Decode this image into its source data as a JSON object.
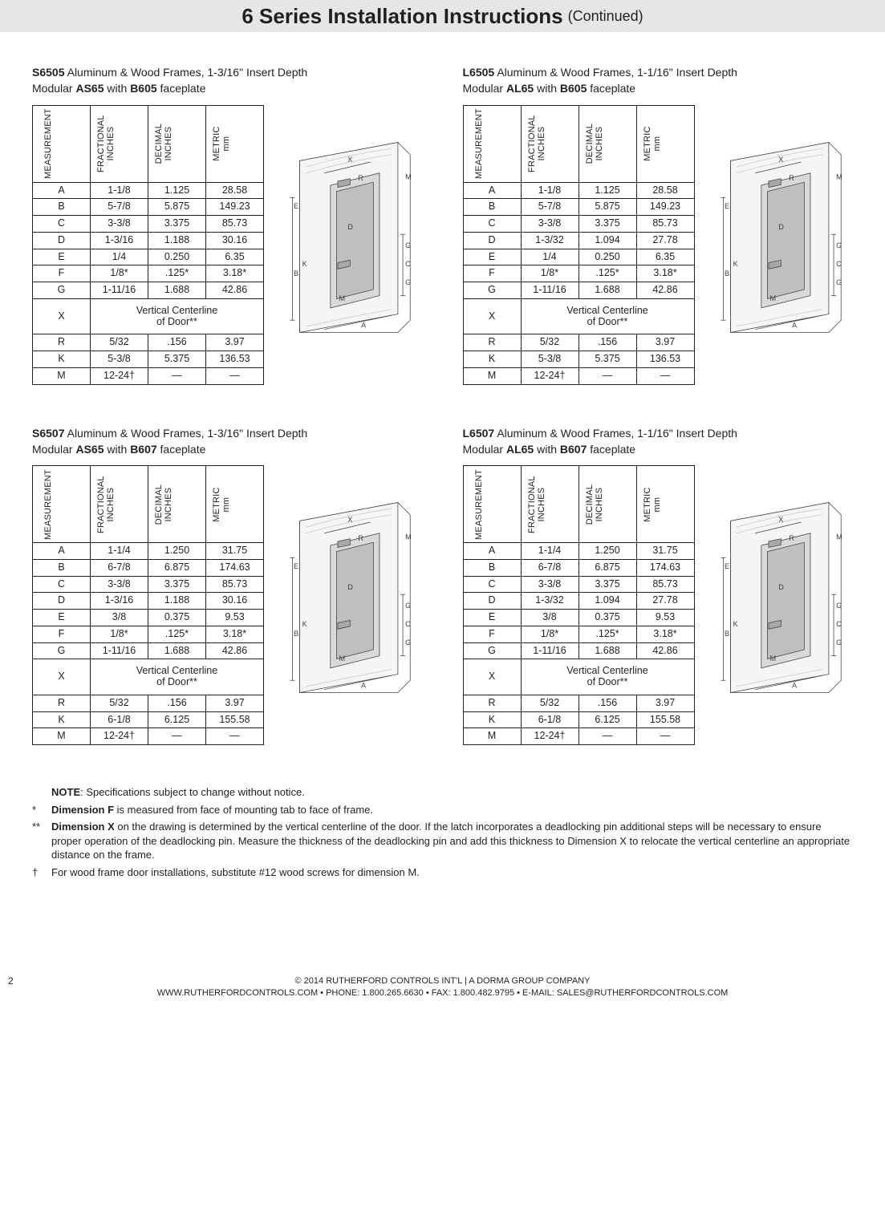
{
  "title": {
    "main": "6 Series Installation Instructions",
    "cont": "(Continued)"
  },
  "colors": {
    "ink": "#231f20",
    "bg": "#ffffff",
    "titlebar": "#e6e6e6",
    "diagram_fill": "#d9d9d9",
    "diagram_stroke": "#404040"
  },
  "col_headers": [
    "MEASUREMENT",
    "FRACTIONAL INCHES",
    "DECIMAL INCHES",
    "METRIC mm"
  ],
  "x_note": "Vertical Centerline of Door**",
  "sections": [
    {
      "model": "S6505",
      "frame": " Aluminum & Wood Frames, 1-3/16\" Insert Depth",
      "mod_pre": "Modular ",
      "mod_b1": "AS65",
      "mod_mid": " with ",
      "mod_b2": "B605",
      "mod_post": " faceplate",
      "rows": [
        {
          "l": "A",
          "f": "1-1/8",
          "d": "1.125",
          "m": "28.58"
        },
        {
          "l": "B",
          "f": "5-7/8",
          "d": "5.875",
          "m": "149.23"
        },
        {
          "l": "C",
          "f": "3-3/8",
          "d": "3.375",
          "m": "85.73"
        },
        {
          "l": "D",
          "f": "1-3/16",
          "d": "1.188",
          "m": "30.16"
        },
        {
          "l": "E",
          "f": "1/4",
          "d": "0.250",
          "m": "6.35"
        },
        {
          "l": "F",
          "f": "1/8*",
          "d": ".125*",
          "m": "3.18*"
        },
        {
          "l": "G",
          "f": "1-11/16",
          "d": "1.688",
          "m": "42.86"
        },
        {
          "l": "X",
          "x": true
        },
        {
          "l": "R",
          "f": "5/32",
          "d": ".156",
          "m": "3.97"
        },
        {
          "l": "K",
          "f": "5-3/8",
          "d": "5.375",
          "m": "136.53"
        },
        {
          "l": "M",
          "f": "12-24†",
          "d": "—",
          "m": "—"
        }
      ]
    },
    {
      "model": "L6505",
      "frame": " Aluminum & Wood Frames, 1-1/16\" Insert Depth",
      "mod_pre": "Modular ",
      "mod_b1": "AL65",
      "mod_mid": " with ",
      "mod_b2": "B605",
      "mod_post": " faceplate",
      "rows": [
        {
          "l": "A",
          "f": "1-1/8",
          "d": "1.125",
          "m": "28.58"
        },
        {
          "l": "B",
          "f": "5-7/8",
          "d": "5.875",
          "m": "149.23"
        },
        {
          "l": "C",
          "f": "3-3/8",
          "d": "3.375",
          "m": "85.73"
        },
        {
          "l": "D",
          "f": "1-3/32",
          "d": "1.094",
          "m": "27.78"
        },
        {
          "l": "E",
          "f": "1/4",
          "d": "0.250",
          "m": "6.35"
        },
        {
          "l": "F",
          "f": "1/8*",
          "d": ".125*",
          "m": "3.18*"
        },
        {
          "l": "G",
          "f": "1-11/16",
          "d": "1.688",
          "m": "42.86"
        },
        {
          "l": "X",
          "x": true
        },
        {
          "l": "R",
          "f": "5/32",
          "d": ".156",
          "m": "3.97"
        },
        {
          "l": "K",
          "f": "5-3/8",
          "d": "5.375",
          "m": "136.53"
        },
        {
          "l": "M",
          "f": "12-24†",
          "d": "—",
          "m": "—"
        }
      ]
    },
    {
      "model": "S6507",
      "frame": " Aluminum & Wood Frames, 1-3/16\" Insert Depth",
      "mod_pre": "Modular ",
      "mod_b1": "AS65",
      "mod_mid": " with ",
      "mod_b2": "B607",
      "mod_post": " faceplate",
      "rows": [
        {
          "l": "A",
          "f": "1-1/4",
          "d": "1.250",
          "m": "31.75"
        },
        {
          "l": "B",
          "f": "6-7/8",
          "d": "6.875",
          "m": "174.63"
        },
        {
          "l": "C",
          "f": "3-3/8",
          "d": "3.375",
          "m": "85.73"
        },
        {
          "l": "D",
          "f": "1-3/16",
          "d": "1.188",
          "m": "30.16"
        },
        {
          "l": "E",
          "f": "3/8",
          "d": "0.375",
          "m": "9.53"
        },
        {
          "l": "F",
          "f": "1/8*",
          "d": ".125*",
          "m": "3.18*"
        },
        {
          "l": "G",
          "f": "1-11/16",
          "d": "1.688",
          "m": "42.86"
        },
        {
          "l": "X",
          "x": true
        },
        {
          "l": "R",
          "f": "5/32",
          "d": ".156",
          "m": "3.97"
        },
        {
          "l": "K",
          "f": "6-1/8",
          "d": "6.125",
          "m": "155.58"
        },
        {
          "l": "M",
          "f": "12-24†",
          "d": "—",
          "m": "—"
        }
      ]
    },
    {
      "model": "L6507",
      "frame": " Aluminum & Wood Frames, 1-1/16\" Insert Depth",
      "mod_pre": "Modular ",
      "mod_b1": "AL65",
      "mod_mid": " with ",
      "mod_b2": "B607",
      "mod_post": " faceplate",
      "rows": [
        {
          "l": "A",
          "f": "1-1/4",
          "d": "1.250",
          "m": "31.75"
        },
        {
          "l": "B",
          "f": "6-7/8",
          "d": "6.875",
          "m": "174.63"
        },
        {
          "l": "C",
          "f": "3-3/8",
          "d": "3.375",
          "m": "85.73"
        },
        {
          "l": "D",
          "f": "1-3/32",
          "d": "1.094",
          "m": "27.78"
        },
        {
          "l": "E",
          "f": "3/8",
          "d": "0.375",
          "m": "9.53"
        },
        {
          "l": "F",
          "f": "1/8*",
          "d": ".125*",
          "m": "3.18*"
        },
        {
          "l": "G",
          "f": "1-11/16",
          "d": "1.688",
          "m": "42.86"
        },
        {
          "l": "X",
          "x": true
        },
        {
          "l": "R",
          "f": "5/32",
          "d": ".156",
          "m": "3.97"
        },
        {
          "l": "K",
          "f": "6-1/8",
          "d": "6.125",
          "m": "155.58"
        },
        {
          "l": "M",
          "f": "12-24†",
          "d": "—",
          "m": "—"
        }
      ]
    }
  ],
  "notes": {
    "lead": {
      "b": "NOTE",
      "rest": ": Specifications subject to change without notice."
    },
    "star1": {
      "sym": "*",
      "b": "Dimension F",
      "rest": " is measured from face of mounting tab to face of frame."
    },
    "star2": {
      "sym": "**",
      "b": "Dimension X",
      "rest": " on the drawing is determined by the vertical centerline of the door. If the latch incorporates a deadlocking pin additional steps will be necessary to ensure proper operation of the deadlocking pin. Measure the thickness of the deadlocking pin and add this thickness to Dimension X to relocate the vertical centerline an appropriate distance on the frame."
    },
    "dagger": {
      "sym": "†",
      "rest": "For wood frame door installations, substitute #12 wood screws for dimension M."
    }
  },
  "footer": {
    "page": "2",
    "l1": "© 2014 RUTHERFORD CONTROLS INT'L | A DORMA GROUP COMPANY",
    "l2": "WWW.RUTHERFORDCONTROLS.COM • PHONE: 1.800.265.6630 • FAX: 1.800.482.9795 • E-MAIL: SALES@RUTHERFORDCONTROLS.COM"
  },
  "diagram_labels": [
    "X",
    "M",
    "R",
    "E",
    "D",
    "K",
    "B",
    "G",
    "C",
    "G",
    "M",
    "A"
  ]
}
